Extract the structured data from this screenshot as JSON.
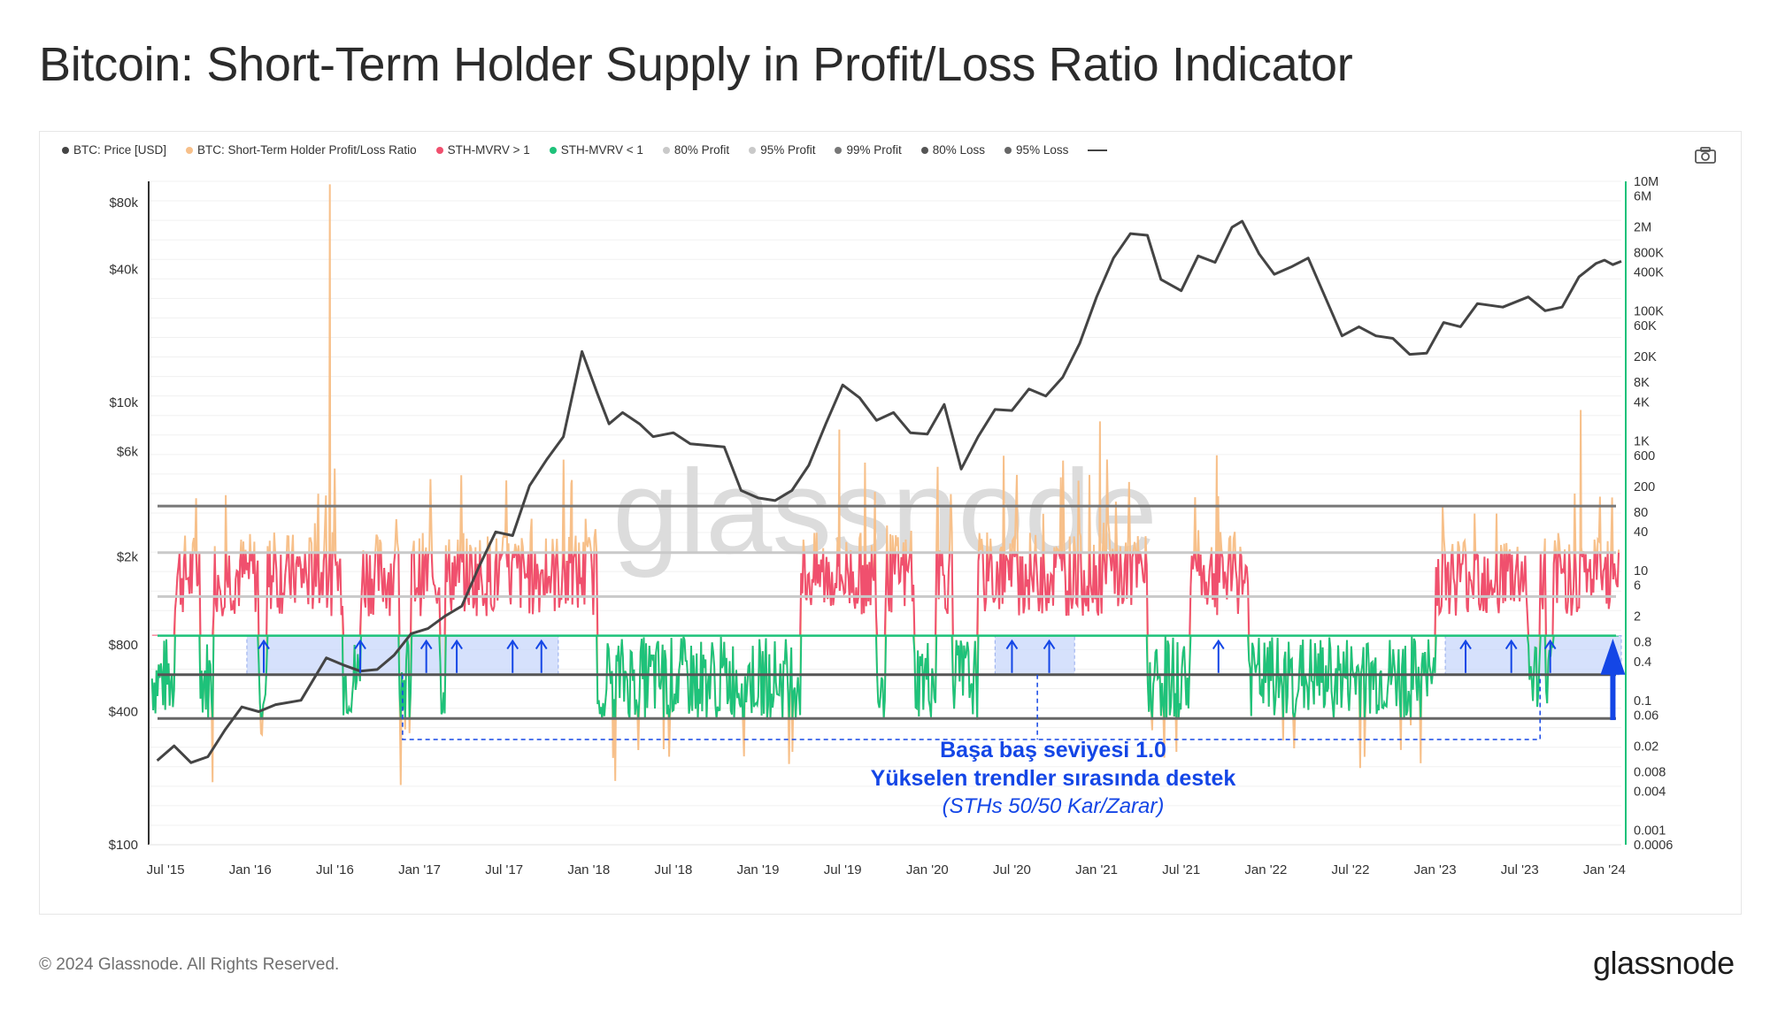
{
  "title": "Bitcoin: Short-Term Holder Supply in Profit/Loss Ratio Indicator",
  "legend": [
    {
      "label": "BTC: Price [USD]",
      "color": "#444444"
    },
    {
      "label": "BTC: Short-Term Holder Profit/Loss Ratio",
      "color": "#f7c08a"
    },
    {
      "label": "STH-MVRV > 1",
      "color": "#f0506e"
    },
    {
      "label": "STH-MVRV < 1",
      "color": "#1ec27a"
    },
    {
      "label": "80% Profit",
      "color": "#c9c9c9"
    },
    {
      "label": "95% Profit",
      "color": "#c9c9c9"
    },
    {
      "label": "99% Profit",
      "color": "#777777"
    },
    {
      "label": "80% Loss",
      "color": "#555555"
    },
    {
      "label": "95% Loss",
      "color": "#666666"
    }
  ],
  "camera_icon": "camera-icon",
  "annotation": {
    "line1": "Başa baş seviyesi  1.0",
    "line2": "Yükselen trendler sırasında destek",
    "line3": "(STHs 50/50 Kar/Zarar)",
    "color": "#1446e6"
  },
  "footer": "© 2024 Glassnode. All Rights Reserved.",
  "brand": "glassnode",
  "watermark": "glassnode",
  "chart_data": {
    "type": "line",
    "left_axis": {
      "scale": "log",
      "range": [
        100,
        100000
      ],
      "ticks": [
        {
          "v": 80000,
          "label": "$80k"
        },
        {
          "v": 40000,
          "label": "$40k"
        },
        {
          "v": 10000,
          "label": "$10k"
        },
        {
          "v": 6000,
          "label": "$6k"
        },
        {
          "v": 2000,
          "label": "$2k"
        },
        {
          "v": 800,
          "label": "$800"
        },
        {
          "v": 400,
          "label": "$400"
        },
        {
          "v": 100,
          "label": "$100"
        }
      ]
    },
    "right_axis": {
      "scale": "log",
      "range": [
        0.0006,
        10000000
      ],
      "ticks": [
        {
          "label": "10M",
          "v": 10000000
        },
        {
          "label": "6M",
          "v": 6000000
        },
        {
          "label": "2M",
          "v": 2000000
        },
        {
          "label": "800K",
          "v": 800000
        },
        {
          "label": "400K",
          "v": 400000
        },
        {
          "label": "100K",
          "v": 100000
        },
        {
          "label": "60K",
          "v": 60000
        },
        {
          "label": "20K",
          "v": 20000
        },
        {
          "label": "8K",
          "v": 8000
        },
        {
          "label": "4K",
          "v": 4000
        },
        {
          "label": "1K",
          "v": 1000
        },
        {
          "label": "600",
          "v": 600
        },
        {
          "label": "200",
          "v": 200
        },
        {
          "label": "80",
          "v": 80
        },
        {
          "label": "40",
          "v": 40
        },
        {
          "label": "10",
          "v": 10
        },
        {
          "label": "6",
          "v": 6
        },
        {
          "label": "2",
          "v": 2
        },
        {
          "label": "0.8",
          "v": 0.8
        },
        {
          "label": "0.4",
          "v": 0.4
        },
        {
          "label": "0.1",
          "v": 0.1
        },
        {
          "label": "0.06",
          "v": 0.06
        },
        {
          "label": "0.02",
          "v": 0.02
        },
        {
          "label": "0.008",
          "v": 0.008
        },
        {
          "label": "0.004",
          "v": 0.004
        },
        {
          "label": "0.001",
          "v": 0.001
        },
        {
          "label": "0.0006",
          "v": 0.0006
        }
      ]
    },
    "x_ticks": [
      {
        "t": 2015.5,
        "label": "Jul '15"
      },
      {
        "t": 2016.0,
        "label": "Jan '16"
      },
      {
        "t": 2016.5,
        "label": "Jul '16"
      },
      {
        "t": 2017.0,
        "label": "Jan '17"
      },
      {
        "t": 2017.5,
        "label": "Jul '17"
      },
      {
        "t": 2018.0,
        "label": "Jan '18"
      },
      {
        "t": 2018.5,
        "label": "Jul '18"
      },
      {
        "t": 2019.0,
        "label": "Jan '19"
      },
      {
        "t": 2019.5,
        "label": "Jul '19"
      },
      {
        "t": 2020.0,
        "label": "Jan '20"
      },
      {
        "t": 2020.5,
        "label": "Jul '20"
      },
      {
        "t": 2021.0,
        "label": "Jan '21"
      },
      {
        "t": 2021.5,
        "label": "Jul '21"
      },
      {
        "t": 2022.0,
        "label": "Jan '22"
      },
      {
        "t": 2022.5,
        "label": "Jul '22"
      },
      {
        "t": 2023.0,
        "label": "Jan '23"
      },
      {
        "t": 2023.5,
        "label": "Jul '23"
      },
      {
        "t": 2024.0,
        "label": "Jan '24"
      }
    ],
    "x_range": [
      2015.4,
      2024.1
    ],
    "threshold_levels": [
      {
        "name": "99% Profit",
        "v": 99,
        "color": "#777777"
      },
      {
        "name": "95% Profit",
        "v": 19,
        "color": "#c9c9c9"
      },
      {
        "name": "80% Profit",
        "v": 4,
        "color": "#c9c9c9"
      },
      {
        "name": "Break-even",
        "v": 1,
        "color": "#1ec27a"
      },
      {
        "name": "80% Loss",
        "v": 0.25,
        "color": "#555555"
      },
      {
        "name": "95% Loss",
        "v": 0.053,
        "color": "#666666"
      }
    ],
    "price_series": [
      [
        2015.45,
        240
      ],
      [
        2015.55,
        280
      ],
      [
        2015.65,
        235
      ],
      [
        2015.75,
        250
      ],
      [
        2015.85,
        330
      ],
      [
        2015.95,
        420
      ],
      [
        2016.05,
        400
      ],
      [
        2016.15,
        430
      ],
      [
        2016.3,
        450
      ],
      [
        2016.45,
        700
      ],
      [
        2016.55,
        650
      ],
      [
        2016.65,
        610
      ],
      [
        2016.75,
        620
      ],
      [
        2016.85,
        720
      ],
      [
        2016.95,
        900
      ],
      [
        2017.05,
        950
      ],
      [
        2017.15,
        1080
      ],
      [
        2017.25,
        1200
      ],
      [
        2017.35,
        1800
      ],
      [
        2017.45,
        2600
      ],
      [
        2017.55,
        2500
      ],
      [
        2017.65,
        4200
      ],
      [
        2017.75,
        5500
      ],
      [
        2017.85,
        7000
      ],
      [
        2017.96,
        17000
      ],
      [
        2018.05,
        11000
      ],
      [
        2018.12,
        8000
      ],
      [
        2018.2,
        9000
      ],
      [
        2018.3,
        8000
      ],
      [
        2018.38,
        7000
      ],
      [
        2018.5,
        7300
      ],
      [
        2018.6,
        6500
      ],
      [
        2018.7,
        6400
      ],
      [
        2018.8,
        6300
      ],
      [
        2018.9,
        4000
      ],
      [
        2019.0,
        3700
      ],
      [
        2019.1,
        3600
      ],
      [
        2019.2,
        4000
      ],
      [
        2019.3,
        5200
      ],
      [
        2019.4,
        8000
      ],
      [
        2019.5,
        12000
      ],
      [
        2019.6,
        10500
      ],
      [
        2019.7,
        8300
      ],
      [
        2019.8,
        9000
      ],
      [
        2019.9,
        7300
      ],
      [
        2020.0,
        7200
      ],
      [
        2020.1,
        9800
      ],
      [
        2020.2,
        5000
      ],
      [
        2020.3,
        7000
      ],
      [
        2020.4,
        9300
      ],
      [
        2020.5,
        9200
      ],
      [
        2020.6,
        11500
      ],
      [
        2020.7,
        10700
      ],
      [
        2020.8,
        13000
      ],
      [
        2020.9,
        18500
      ],
      [
        2021.0,
        30000
      ],
      [
        2021.1,
        45000
      ],
      [
        2021.2,
        58000
      ],
      [
        2021.3,
        57000
      ],
      [
        2021.38,
        36000
      ],
      [
        2021.5,
        32000
      ],
      [
        2021.6,
        46000
      ],
      [
        2021.7,
        43000
      ],
      [
        2021.8,
        62000
      ],
      [
        2021.86,
        66000
      ],
      [
        2021.96,
        47000
      ],
      [
        2022.05,
        38000
      ],
      [
        2022.15,
        41000
      ],
      [
        2022.25,
        45000
      ],
      [
        2022.35,
        30000
      ],
      [
        2022.45,
        20000
      ],
      [
        2022.55,
        22000
      ],
      [
        2022.65,
        20000
      ],
      [
        2022.75,
        19500
      ],
      [
        2022.85,
        16500
      ],
      [
        2022.95,
        16700
      ],
      [
        2023.05,
        23000
      ],
      [
        2023.15,
        22000
      ],
      [
        2023.25,
        28000
      ],
      [
        2023.4,
        27000
      ],
      [
        2023.55,
        30000
      ],
      [
        2023.65,
        26000
      ],
      [
        2023.75,
        27000
      ],
      [
        2023.85,
        37000
      ],
      [
        2023.95,
        42500
      ],
      [
        2024.0,
        44000
      ],
      [
        2024.05,
        42000
      ],
      [
        2024.1,
        43500
      ]
    ],
    "arrows_t": [
      2016.08,
      2016.65,
      2017.04,
      2017.22,
      2017.55,
      2017.72,
      2020.5,
      2020.72,
      2021.72,
      2023.18,
      2023.45,
      2023.68
    ],
    "shaded_regions": [
      [
        2015.98,
        2017.82
      ],
      [
        2020.4,
        2020.87
      ],
      [
        2023.06,
        2024.1
      ]
    ]
  }
}
